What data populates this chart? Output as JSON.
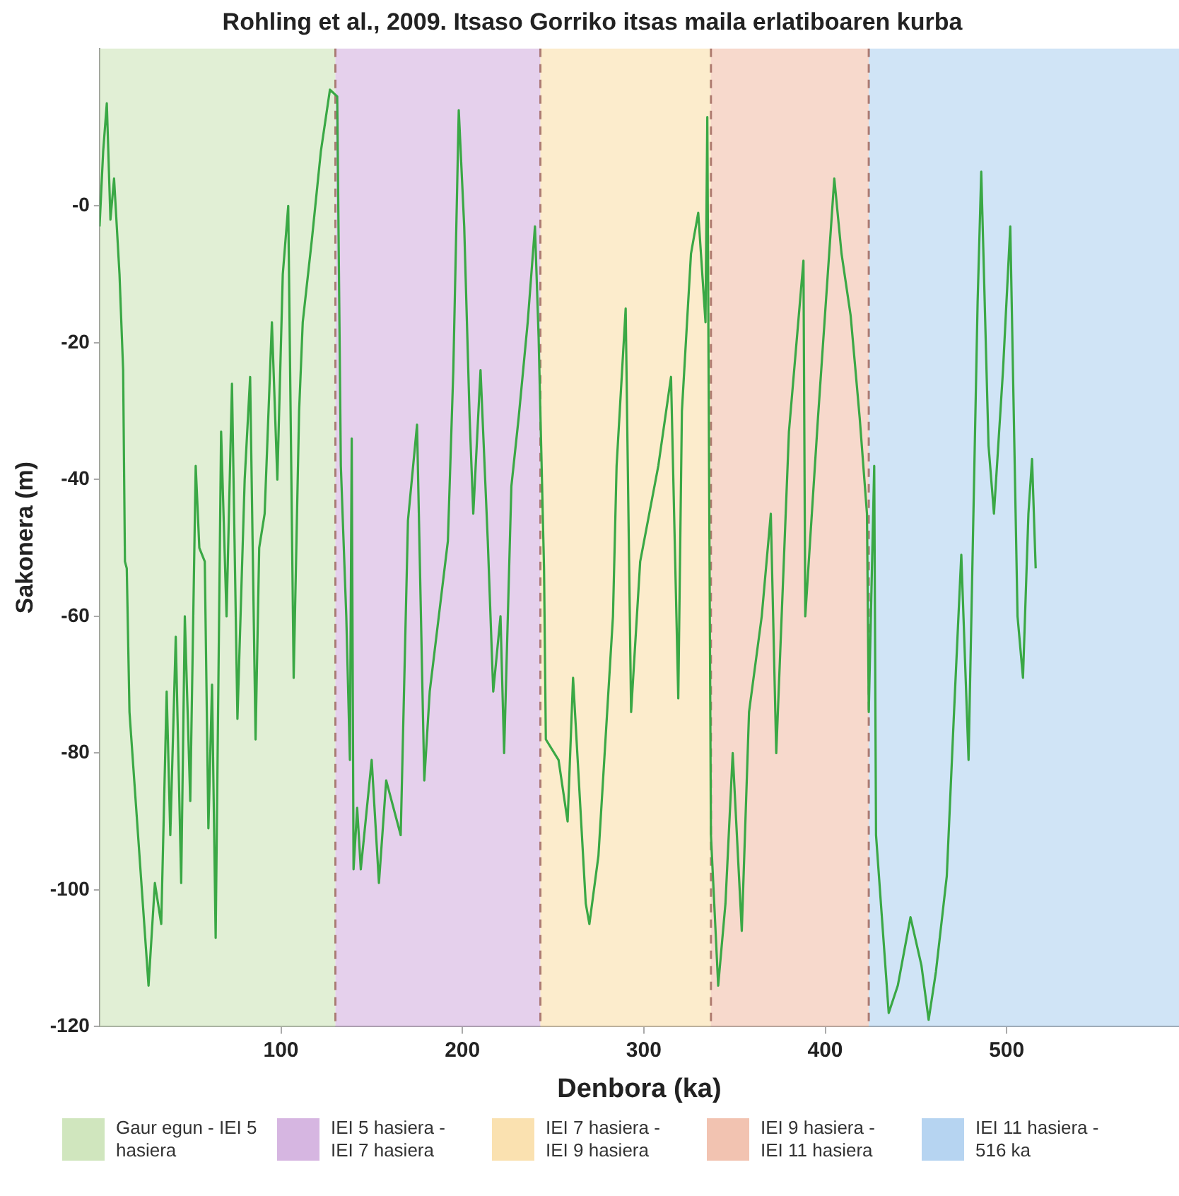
{
  "chart_data": {
    "type": "line",
    "title": "Rohling et al., 2009. Itsaso Gorriko itsas maila erlatiboaren kurba",
    "xlabel": "Denbora (ka)",
    "ylabel": "Sakonera (m)",
    "xlim": [
      0,
      595
    ],
    "xticks": [
      100,
      200,
      300,
      400,
      500
    ],
    "ylim": [
      -120,
      23
    ],
    "yticks": [
      -120,
      -100,
      -80,
      -60,
      -40,
      -20,
      {
        "value": 0,
        "label": "-0"
      }
    ],
    "grid": false,
    "legend": "bottom",
    "marker": "none",
    "line_style": "solid",
    "bands": [
      {
        "axis": "x",
        "from": 0,
        "to": 130,
        "label": "Gaur egun - IEI 5 hasiera",
        "color": "#c8e2b3"
      },
      {
        "axis": "x",
        "from": 130,
        "to": 243,
        "label": "IEI 5 hasiera - IEI 7 hasiera",
        "color": "#cfa9dc"
      },
      {
        "axis": "x",
        "from": 243,
        "to": 337,
        "label": "IEI 7 hasiera - IEI 9 hasiera",
        "color": "#f9dca2"
      },
      {
        "axis": "x",
        "from": 337,
        "to": 424,
        "label": "IEI 9 hasiera - IEI 11 hasiera",
        "color": "#f0b9a3"
      },
      {
        "axis": "x",
        "from": 424,
        "to": 595,
        "label": "IEI 11 hasiera - 516 ka",
        "color": "#a9cdef"
      }
    ],
    "ref_lines": [
      {
        "axis": "x",
        "value": 130,
        "color": "#965a50",
        "line_style": "dashed"
      },
      {
        "axis": "x",
        "value": 243,
        "color": "#965a50",
        "line_style": "dashed"
      },
      {
        "axis": "x",
        "value": 337,
        "color": "#965a50",
        "line_style": "dashed"
      },
      {
        "axis": "x",
        "value": 424,
        "color": "#965a50",
        "line_style": "dashed"
      }
    ],
    "series": [
      {
        "color": "#3aa845",
        "x": [
          0,
          2,
          4,
          6,
          8,
          11,
          13,
          14,
          15,
          16.5,
          27,
          30.5,
          34,
          37,
          39,
          42,
          45,
          47,
          50,
          53,
          55,
          58,
          60,
          62,
          64,
          67,
          70,
          73,
          76,
          80,
          83,
          86,
          88,
          91,
          95,
          98,
          101,
          104,
          107,
          110,
          112,
          117,
          122,
          127,
          131,
          133,
          136,
          138,
          139,
          140,
          142,
          144,
          150,
          154,
          158,
          166,
          170,
          175,
          179,
          182,
          187,
          192,
          195,
          198,
          201,
          204,
          206,
          210,
          214,
          217,
          221,
          223,
          227,
          231,
          236,
          240,
          242,
          245,
          246,
          253,
          258,
          261,
          268,
          270,
          275,
          283,
          285,
          290,
          293,
          298,
          303,
          308,
          315,
          319,
          321,
          326,
          330,
          334,
          335,
          337,
          341,
          345,
          349,
          354,
          358,
          365,
          370,
          373,
          380,
          388,
          389,
          396,
          405,
          409,
          414,
          419,
          423,
          424,
          427,
          428,
          435,
          440,
          447,
          453,
          457,
          461,
          467,
          471,
          475,
          479,
          484,
          486,
          490,
          493,
          498,
          502,
          506,
          509,
          512,
          514,
          516
        ],
        "values": [
          -3,
          8,
          15,
          -2,
          4,
          -10,
          -24,
          -52,
          -53,
          -74,
          -114,
          -99,
          -105,
          -71,
          -92,
          -63,
          -99,
          -60,
          -87,
          -38,
          -50,
          -52,
          -91,
          -70,
          -107,
          -33,
          -60,
          -26,
          -75,
          -40,
          -25,
          -78,
          -50,
          -45,
          -17,
          -40,
          -10,
          0,
          -69,
          -30,
          -17,
          -5,
          8,
          17,
          16,
          -38,
          -60,
          -81,
          -34,
          -97,
          -88,
          -97,
          -81,
          -99,
          -84,
          -92,
          -46,
          -32,
          -84,
          -71,
          -60,
          -49,
          -24,
          14,
          -3,
          -31,
          -45,
          -24,
          -49,
          -71,
          -60,
          -80,
          -41,
          -31,
          -17,
          -3,
          -19,
          -53,
          -78,
          -81,
          -90,
          -69,
          -102,
          -105,
          -95,
          -60,
          -38,
          -15,
          -74,
          -52,
          -45,
          -38,
          -25,
          -72,
          -30,
          -7,
          -1,
          -17,
          13,
          -92,
          -114,
          -102,
          -80,
          -106,
          -74,
          -60,
          -45,
          -80,
          -33,
          -8,
          -60,
          -31,
          4,
          -7,
          -16,
          -31,
          -45,
          -74,
          -38,
          -92,
          -118,
          -114,
          -104,
          -111,
          -119,
          -112,
          -98,
          -74,
          -51,
          -81,
          -14,
          5,
          -35,
          -45,
          -24,
          -3,
          -60,
          -69,
          -45,
          -37,
          -53
        ]
      }
    ]
  }
}
